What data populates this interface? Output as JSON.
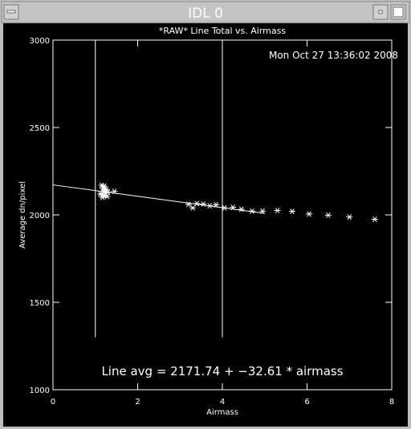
{
  "window": {
    "title": "IDL 0"
  },
  "chart_data": {
    "type": "scatter",
    "title": "*RAW* Line Total vs. Airmass",
    "timestamp": "Mon Oct 27 13:36:02 2008",
    "xlabel": "Airmass",
    "ylabel": "Average dn/pixel",
    "annotation": "Line avg = 2171.74 + −32.61 * airmass",
    "xlim": [
      0,
      8
    ],
    "xticks": [
      0,
      2,
      4,
      6,
      8
    ],
    "ylim": [
      1000,
      3000
    ],
    "yticks": [
      1000,
      1500,
      2000,
      2500,
      3000
    ],
    "color": "#ffffff",
    "series": [
      {
        "x": [
          1.12,
          1.15,
          1.17,
          1.18,
          1.2,
          1.21,
          1.22,
          1.24,
          1.26,
          1.28,
          1.3,
          1.16,
          1.19,
          1.23,
          1.45,
          3.2,
          3.3,
          3.4,
          3.55,
          3.7,
          3.85,
          4.05,
          4.25,
          4.45,
          4.7,
          4.95,
          5.3,
          5.65,
          6.05,
          6.5,
          7.0,
          7.6
        ],
        "values": [
          2120,
          2170,
          2100,
          2150,
          2135,
          2165,
          2110,
          2125,
          2145,
          2105,
          2130,
          2115,
          2160,
          2140,
          2135,
          2060,
          2040,
          2065,
          2062,
          2052,
          2058,
          2040,
          2043,
          2032,
          2022,
          2022,
          2025,
          2020,
          2005,
          1998,
          1988,
          1975
        ]
      }
    ],
    "fit_line": {
      "x": [
        0,
        5
      ],
      "values": [
        2171.74,
        2008.69
      ]
    },
    "vlines": {
      "x": [
        1,
        4
      ],
      "values": [
        1300,
        3000
      ]
    }
  }
}
